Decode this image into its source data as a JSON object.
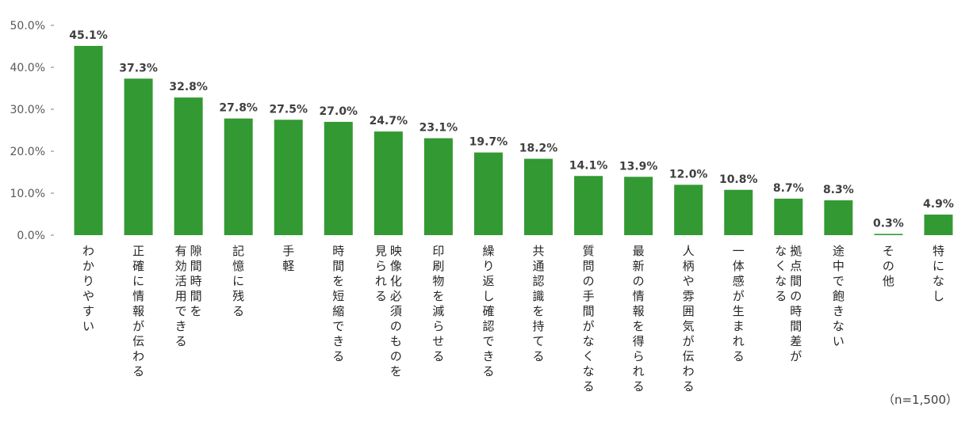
{
  "chart_data": {
    "type": "bar",
    "categories": [
      "わかりやすい",
      "正確に情報が伝わる",
      "隙間時間を有効活用できる",
      "記憶に残る",
      "手軽",
      "時間を短縮できる",
      "映像化必須のものを見られる",
      "印刷物を減らせる",
      "繰り返し確認できる",
      "共通認識を持てる",
      "質問の手間がなくなる",
      "最新の情報を得られる",
      "人柄や雰囲気が伝わる",
      "一体感が生まれる",
      "拠点間の時間差がなくなる",
      "途中で飽きない",
      "その他",
      "特になし"
    ],
    "category_lines": [
      [
        "わかりやすい"
      ],
      [
        "正確に情報が伝わる"
      ],
      [
        "隙間時間を",
        "有効活用できる"
      ],
      [
        "記憶に残る"
      ],
      [
        "手軽"
      ],
      [
        "時間を短縮できる"
      ],
      [
        "映像化必須のものを",
        "見られる"
      ],
      [
        "印刷物を減らせる"
      ],
      [
        "繰り返し確認できる"
      ],
      [
        "共通認識を持てる"
      ],
      [
        "質問の手間がなくなる"
      ],
      [
        "最新の情報を得られる"
      ],
      [
        "人柄や雰囲気が伝わる"
      ],
      [
        "一体感が生まれる"
      ],
      [
        "拠点間の時間差が",
        "なくなる"
      ],
      [
        "途中で飽きない"
      ],
      [
        "その他"
      ],
      [
        "特になし"
      ]
    ],
    "values": [
      45.1,
      37.3,
      32.8,
      27.8,
      27.5,
      27.0,
      24.7,
      23.1,
      19.7,
      18.2,
      14.1,
      13.9,
      12.0,
      10.8,
      8.7,
      8.3,
      0.3,
      4.9
    ],
    "data_labels": [
      "45.1%",
      "37.3%",
      "32.8%",
      "27.8%",
      "27.5%",
      "27.0%",
      "24.7%",
      "23.1%",
      "19.7%",
      "18.2%",
      "14.1%",
      "13.9%",
      "12.0%",
      "10.8%",
      "8.7%",
      "8.3%",
      "0.3%",
      "4.9%"
    ],
    "ylim": [
      0,
      50
    ],
    "yticks": [
      0,
      10,
      20,
      30,
      40,
      50
    ],
    "ytick_labels": [
      "0.0%",
      "10.0%",
      "20.0%",
      "30.0%",
      "40.0%",
      "50.0%"
    ],
    "grid": false,
    "bar_color": "#339933",
    "note": "（n=1,500）"
  }
}
